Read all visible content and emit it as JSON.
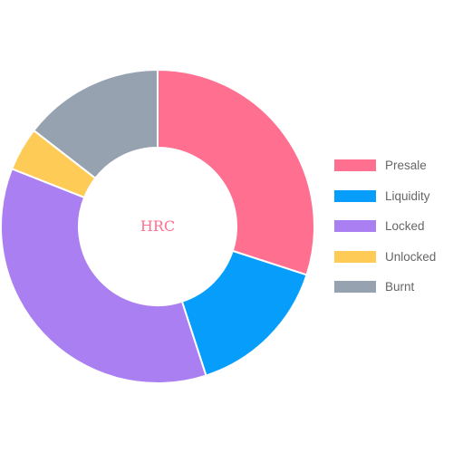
{
  "chart_data": {
    "type": "pie",
    "variant": "doughnut",
    "center_text": "HRC",
    "center_text_color": "#ff6f8f",
    "legend_position": "right",
    "categories": [
      "Presale",
      "Liquidity",
      "Locked",
      "Unlocked",
      "Burnt"
    ],
    "values": [
      30,
      15,
      36,
      4.5,
      14.5
    ],
    "colors": [
      "#ff6f8f",
      "#069dfb",
      "#a97ff2",
      "#ffcb57",
      "#96a2b0"
    ]
  }
}
